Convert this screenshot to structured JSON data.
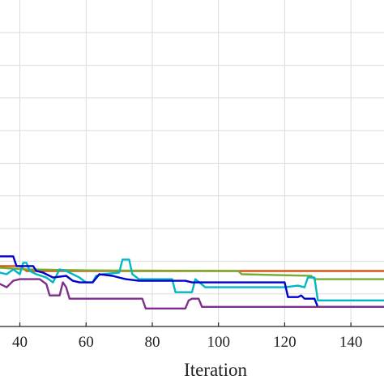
{
  "chart_data": {
    "type": "line",
    "title": "",
    "xlabel": "Iteration",
    "ylabel": "",
    "xlim": [
      34,
      150
    ],
    "ylim": [
      0,
      10
    ],
    "x_ticks": [
      40,
      60,
      80,
      100,
      120,
      140
    ],
    "x_tick_labels": [
      "40",
      "60",
      "80",
      "100",
      "120",
      "140"
    ],
    "y_grid_values": [
      1,
      2,
      3,
      4,
      5,
      6,
      7,
      8,
      9
    ],
    "grid": true,
    "legend": "none",
    "series": [
      {
        "color": "#d95319",
        "points": [
          [
            34,
            1.85
          ],
          [
            40,
            1.85
          ],
          [
            42,
            1.7
          ],
          [
            150,
            1.7
          ]
        ]
      },
      {
        "color": "#77ac30",
        "points": [
          [
            34,
            1.8
          ],
          [
            42,
            1.75
          ],
          [
            60,
            1.72
          ],
          [
            106,
            1.7
          ],
          [
            107,
            1.6
          ],
          [
            128,
            1.55
          ],
          [
            129,
            1.45
          ],
          [
            150,
            1.45
          ]
        ]
      },
      {
        "color": "#00b7c3",
        "points": [
          [
            34,
            1.65
          ],
          [
            36,
            1.6
          ],
          [
            38,
            1.75
          ],
          [
            40,
            1.6
          ],
          [
            41,
            1.95
          ],
          [
            42,
            1.95
          ],
          [
            43,
            1.7
          ],
          [
            45,
            1.6
          ],
          [
            48,
            1.5
          ],
          [
            50,
            1.35
          ],
          [
            51,
            1.55
          ],
          [
            52,
            1.75
          ],
          [
            54,
            1.7
          ],
          [
            56,
            1.6
          ],
          [
            58,
            1.5
          ],
          [
            60,
            1.35
          ],
          [
            62,
            1.35
          ],
          [
            63,
            1.55
          ],
          [
            65,
            1.6
          ],
          [
            70,
            1.65
          ],
          [
            71,
            2.05
          ],
          [
            73,
            2.05
          ],
          [
            74,
            1.6
          ],
          [
            76,
            1.45
          ],
          [
            86,
            1.45
          ],
          [
            87,
            1.05
          ],
          [
            92,
            1.05
          ],
          [
            93,
            1.45
          ],
          [
            96,
            1.2
          ],
          [
            120,
            1.2
          ],
          [
            124,
            1.25
          ],
          [
            126,
            1.2
          ],
          [
            127,
            1.5
          ],
          [
            129,
            1.5
          ],
          [
            130,
            0.8
          ],
          [
            150,
            0.8
          ]
        ]
      },
      {
        "color": "#0000cc",
        "points": [
          [
            34,
            2.15
          ],
          [
            38,
            2.15
          ],
          [
            39,
            1.85
          ],
          [
            44,
            1.85
          ],
          [
            45,
            1.7
          ],
          [
            47,
            1.65
          ],
          [
            50,
            1.5
          ],
          [
            54,
            1.55
          ],
          [
            56,
            1.4
          ],
          [
            58,
            1.35
          ],
          [
            62,
            1.35
          ],
          [
            64,
            1.6
          ],
          [
            68,
            1.55
          ],
          [
            70,
            1.5
          ],
          [
            72,
            1.45
          ],
          [
            76,
            1.4
          ],
          [
            86,
            1.4
          ],
          [
            90,
            1.4
          ],
          [
            92,
            1.35
          ],
          [
            120,
            1.35
          ],
          [
            121,
            0.9
          ],
          [
            124,
            0.9
          ],
          [
            125,
            0.95
          ],
          [
            126,
            0.85
          ],
          [
            129,
            0.85
          ],
          [
            130,
            0.6
          ],
          [
            150,
            0.6
          ]
        ]
      },
      {
        "color": "#7e2f8e",
        "points": [
          [
            34,
            1.3
          ],
          [
            36,
            1.2
          ],
          [
            38,
            1.4
          ],
          [
            40,
            1.45
          ],
          [
            46,
            1.45
          ],
          [
            48,
            1.3
          ],
          [
            49,
            0.95
          ],
          [
            52,
            0.95
          ],
          [
            53,
            1.35
          ],
          [
            54,
            1.2
          ],
          [
            55,
            0.85
          ],
          [
            77,
            0.85
          ],
          [
            78,
            0.55
          ],
          [
            90,
            0.55
          ],
          [
            91,
            0.8
          ],
          [
            92,
            0.85
          ],
          [
            94,
            0.85
          ],
          [
            95,
            0.6
          ],
          [
            150,
            0.6
          ]
        ]
      }
    ]
  }
}
